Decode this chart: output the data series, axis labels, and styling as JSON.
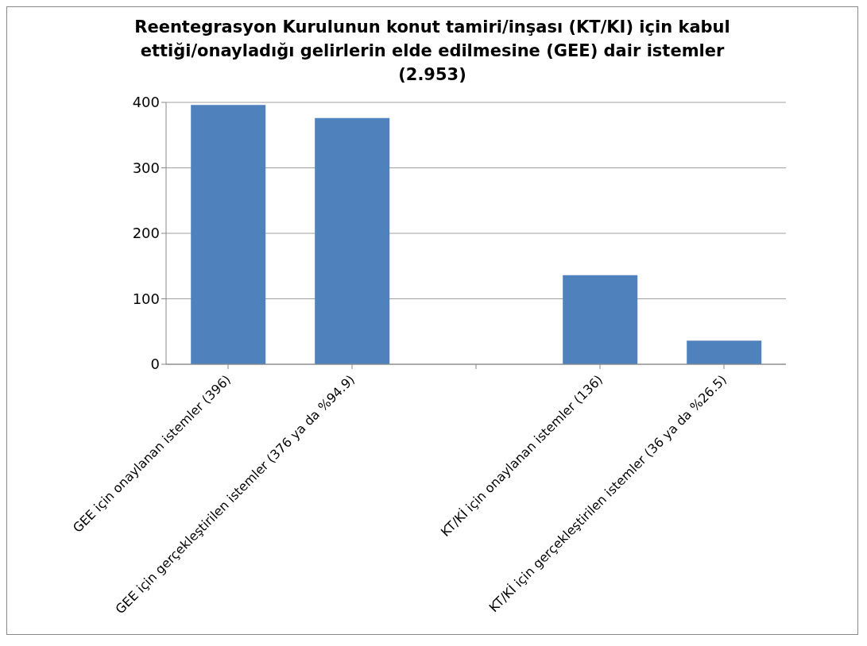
{
  "chart_data": {
    "type": "bar",
    "title": "Reentegrasyon Kurulunun konut tamiri/inşası (KT/KI) için kabul ettiği/onayladığı gelirlerin elde edilmesine (GEE) dair istemler (2.953)",
    "categories": [
      "GEE için onaylanan istemler (396)",
      "GEE için gerçekleştirilen istemler (376 ya da %94.9)",
      null,
      "KT/Kİ için onaylanan istemler (136)",
      "KT/Kİ için gerçekleştirilen istemler (36 ya da %26.5)"
    ],
    "values": [
      396,
      376,
      null,
      136,
      36
    ],
    "color": "#4f81bd",
    "ylim": [
      0,
      400
    ],
    "yticks": [
      0,
      100,
      200,
      300,
      400
    ],
    "grid": "y",
    "legend": false
  }
}
